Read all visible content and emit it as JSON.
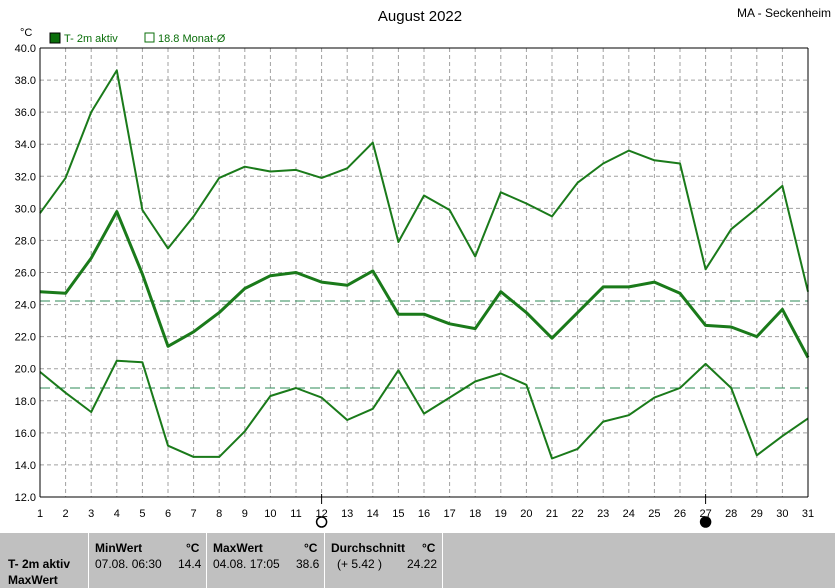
{
  "chart_data": {
    "type": "line",
    "title": "August 2022",
    "location": "MA - Seckenheim",
    "ylabel": "°C",
    "ylim": [
      12,
      40
    ],
    "y_ticks": [
      "12.0",
      "14.0",
      "16.0",
      "18.0",
      "20.0",
      "22.0",
      "24.0",
      "26.0",
      "28.0",
      "30.0",
      "32.0",
      "34.0",
      "36.0",
      "38.0",
      "40.0"
    ],
    "x": [
      1,
      2,
      3,
      4,
      5,
      6,
      7,
      8,
      9,
      10,
      11,
      12,
      13,
      14,
      15,
      16,
      17,
      18,
      19,
      20,
      21,
      22,
      23,
      24,
      25,
      26,
      27,
      28,
      29,
      30,
      31
    ],
    "x_ticks": [
      "1",
      "2",
      "3",
      "4",
      "5",
      "6",
      "7",
      "8",
      "9",
      "10",
      "11",
      "12",
      "13",
      "14",
      "15",
      "16",
      "17",
      "18",
      "19",
      "20",
      "21",
      "22",
      "23",
      "24",
      "25",
      "26",
      "27",
      "28",
      "29",
      "30",
      "31"
    ],
    "grid": true,
    "legend": [
      {
        "label": "T- 2m aktiv",
        "style": "filled"
      },
      {
        "label": "18.8 Monat-Ø",
        "style": "outline"
      }
    ],
    "series": [
      {
        "role": "max",
        "values": [
          29.7,
          31.9,
          36.0,
          38.6,
          29.9,
          27.5,
          29.5,
          31.9,
          32.6,
          32.3,
          32.4,
          31.9,
          32.5,
          34.1,
          27.9,
          30.8,
          29.9,
          27.0,
          31.0,
          30.3,
          29.5,
          31.6,
          32.8,
          33.6,
          33.0,
          32.8,
          26.2,
          28.7,
          30.0,
          31.4,
          24.8
        ]
      },
      {
        "role": "mean",
        "values": [
          24.8,
          24.7,
          26.9,
          29.8,
          25.9,
          21.4,
          22.3,
          23.5,
          25.0,
          25.8,
          26.0,
          25.4,
          25.2,
          26.1,
          23.4,
          23.4,
          22.8,
          22.5,
          24.8,
          23.5,
          21.9,
          23.5,
          25.1,
          25.1,
          25.4,
          24.7,
          22.7,
          22.6,
          22.0,
          23.7,
          20.7
        ]
      },
      {
        "role": "min",
        "values": [
          19.8,
          18.5,
          17.3,
          20.5,
          20.4,
          15.2,
          14.5,
          14.5,
          16.1,
          18.3,
          18.8,
          18.2,
          16.8,
          17.5,
          19.9,
          17.2,
          18.2,
          19.2,
          19.7,
          19.0,
          14.4,
          15.0,
          16.7,
          17.1,
          18.2,
          18.8,
          20.3,
          18.8,
          14.6,
          15.8,
          16.9
        ]
      }
    ],
    "reference_lines": [
      24.22,
      18.8
    ],
    "moon_phases": [
      {
        "day": 12,
        "phase": "full"
      },
      {
        "day": 27,
        "phase": "new"
      }
    ]
  },
  "footer": {
    "row1": "T- 2m aktiv",
    "row2": "MaxWert",
    "min": {
      "label": "MinWert",
      "unit": "°C",
      "when": "07.08.  06:30",
      "value": "14.4"
    },
    "max": {
      "label": "MaxWert",
      "unit": "°C",
      "when": "04.08.  17:05",
      "value": "38.6"
    },
    "avg": {
      "label": "Durchschnitt",
      "unit": "°C",
      "delta": "(+ 5.42 )",
      "value": "24.22"
    }
  },
  "colors": {
    "line": "#1a7a1a",
    "legend_fill": "#0a6e0a",
    "reference": "#2e8b57",
    "grid": "#a0a0a0",
    "footer_bg": "#c0c0c0"
  }
}
